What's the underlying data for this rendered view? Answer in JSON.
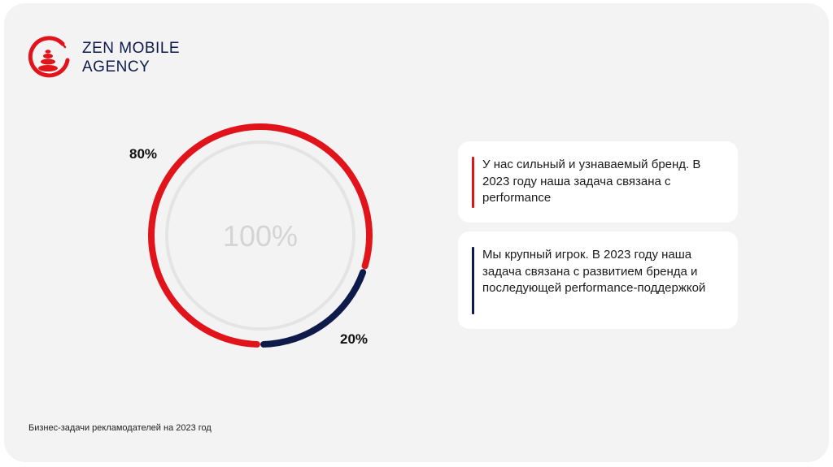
{
  "brand": {
    "name_line1": "ZEN MOBILE",
    "name_line2": "AGENCY",
    "logo_icon": "zen-stones-circle-icon",
    "accent_color": "#e2141b",
    "dark_color": "#0e1a4a"
  },
  "chart_data": {
    "type": "donut",
    "center_label": "100%",
    "series": [
      {
        "value": 80,
        "label": "80%",
        "color": "#e2141b"
      },
      {
        "value": 20,
        "label": "20%",
        "color": "#0e1a4a"
      }
    ]
  },
  "cards": [
    {
      "text": "У нас сильный и узнаваемый бренд. В 2023 году наша задача связана с performance",
      "color": "#e2141b"
    },
    {
      "text": "Мы крупный игрок. В 2023 году наша задача связана с развитием бренда и последующей performance-поддержкой",
      "color": "#0e1a4a"
    }
  ],
  "caption": "Бизнес-задачи рекламодателей на 2023 год"
}
